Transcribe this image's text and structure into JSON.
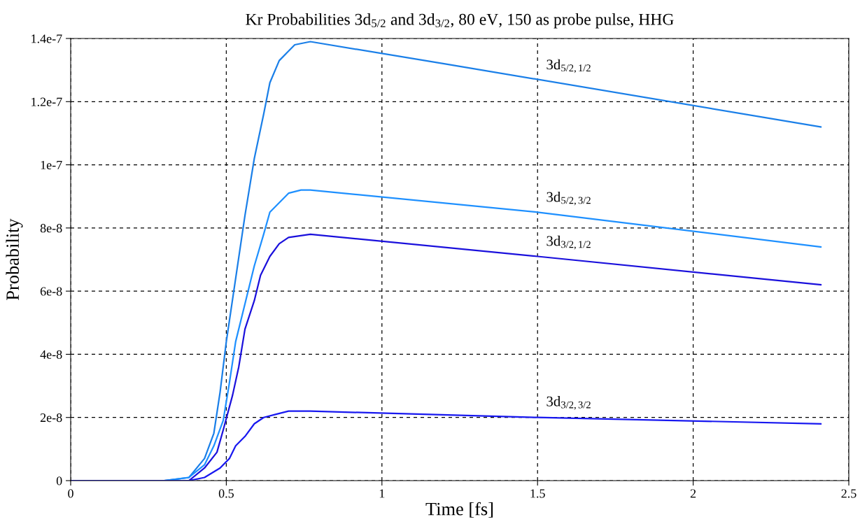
{
  "chart_data": {
    "type": "line",
    "title": "Kr Probabilities 3d$_{5/2}$ and 3d$_{3/2}$, 80 eV, 150 as probe pulse, HHG",
    "xlabel": "Time [fs]",
    "ylabel": "Probability",
    "xlim": [
      0,
      2.5
    ],
    "xticks": [
      0,
      0.5,
      1,
      1.5,
      2,
      2.5
    ],
    "ylim": [
      0,
      1.4e-07
    ],
    "yticks": [
      0,
      {
        "value": 2e-08,
        "label": "2e-8"
      },
      {
        "value": 4e-08,
        "label": "4e-8"
      },
      {
        "value": 6e-08,
        "label": "6e-8"
      },
      {
        "value": 8e-08,
        "label": "8e-8"
      },
      {
        "value": 1e-07,
        "label": "1e-7"
      },
      {
        "value": 1.2e-07,
        "label": "1.2e-7"
      },
      {
        "value": 1.4e-07,
        "label": "1.4e-7"
      }
    ],
    "grid": true,
    "legend": false,
    "marker": "none",
    "line_style": "solid",
    "series": [
      {
        "name": "3d$_{5/2,1/2}$",
        "color": "#1a7fe8",
        "x": [
          0,
          0.3,
          0.38,
          0.43,
          0.46,
          0.48,
          0.5,
          0.53,
          0.56,
          0.59,
          0.62,
          0.64,
          0.67,
          0.7,
          0.72,
          0.77,
          1.2,
          2.41
        ],
        "values": [
          0,
          0,
          1e-09,
          7e-09,
          1.5e-08,
          2.8e-08,
          4.4e-08,
          6.4e-08,
          8.4e-08,
          1.02e-07,
          1.16e-07,
          1.26e-07,
          1.33e-07,
          1.36e-07,
          1.38e-07,
          1.39e-07,
          1.32e-07,
          1.12e-07
        ]
      },
      {
        "name": "3d$_{5/2,3/2}$",
        "color": "#1e90ff",
        "x": [
          0,
          0.3,
          0.38,
          0.43,
          0.46,
          0.49,
          0.51,
          0.53,
          0.56,
          0.59,
          0.62,
          0.64,
          0.67,
          0.7,
          0.74,
          0.77,
          1.5,
          2.41
        ],
        "values": [
          0,
          0,
          1e-09,
          5e-09,
          1.1e-08,
          1.9e-08,
          3.1e-08,
          4.4e-08,
          5.6e-08,
          6.8e-08,
          7.8e-08,
          8.5e-08,
          8.8e-08,
          9.1e-08,
          9.2e-08,
          9.2e-08,
          8.5e-08,
          7.4e-08
        ]
      },
      {
        "name": "3d$_{3/2,1/2}$",
        "color": "#1a10dc",
        "x": [
          0,
          0.3,
          0.38,
          0.43,
          0.47,
          0.49,
          0.52,
          0.54,
          0.56,
          0.59,
          0.61,
          0.64,
          0.67,
          0.7,
          0.77,
          1.5,
          2.41
        ],
        "values": [
          0,
          0,
          0,
          4e-09,
          9e-09,
          1.6e-08,
          2.7e-08,
          3.6e-08,
          4.8e-08,
          5.7e-08,
          6.5e-08,
          7.1e-08,
          7.5e-08,
          7.7e-08,
          7.8e-08,
          7.1e-08,
          6.2e-08
        ]
      },
      {
        "name": "3d$_{3/2,3/2}$",
        "color": "#1818f0",
        "x": [
          0,
          0.38,
          0.43,
          0.48,
          0.51,
          0.53,
          0.56,
          0.59,
          0.62,
          0.66,
          0.7,
          0.77,
          1.5,
          2.41
        ],
        "values": [
          0,
          0,
          1e-09,
          4e-09,
          7e-09,
          1.1e-08,
          1.4e-08,
          1.8e-08,
          2e-08,
          2.1e-08,
          2.2e-08,
          2.2e-08,
          2e-08,
          1.8e-08
        ]
      }
    ]
  }
}
